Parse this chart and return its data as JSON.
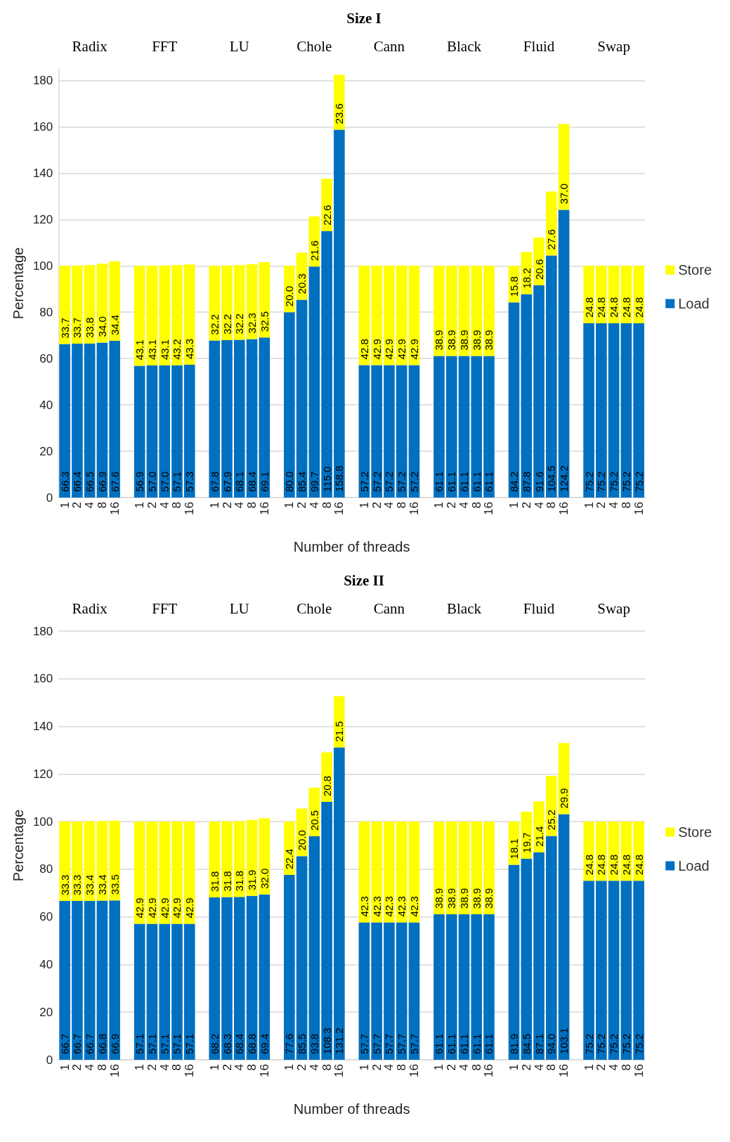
{
  "chart_data": [
    {
      "type": "bar",
      "title": "Size I",
      "xlabel": "Number of threads",
      "ylabel": "Percentage",
      "stacked": true,
      "grid": "y",
      "legend": "right",
      "ylim": [
        0,
        185
      ],
      "yticks": [
        0,
        20,
        40,
        60,
        80,
        100,
        120,
        140,
        160,
        180
      ],
      "annotations": [
        "Radix",
        "FFT",
        "LU",
        "Chole",
        "Cann",
        "Black",
        "Fluid",
        "Swap"
      ],
      "categories": [
        "1",
        "2",
        "4",
        "8",
        "16",
        null,
        "1",
        "2",
        "4",
        "8",
        "16",
        null,
        "1",
        "2",
        "4",
        "8",
        "16",
        null,
        "1",
        "2",
        "4",
        "8",
        "16",
        null,
        "1",
        "2",
        "4",
        "8",
        "16",
        null,
        "1",
        "2",
        "4",
        "8",
        "16",
        null,
        "1",
        "2",
        "4",
        "8",
        "16",
        null,
        "1",
        "2",
        "4",
        "8",
        "16"
      ],
      "series": [
        {
          "name": "Load",
          "color": "#0070c0",
          "values": [
            66.3,
            66.4,
            66.5,
            66.9,
            67.6,
            null,
            56.9,
            57.0,
            57.0,
            57.1,
            57.3,
            null,
            67.8,
            67.9,
            68.1,
            68.4,
            69.1,
            null,
            80.0,
            85.4,
            99.7,
            115.0,
            158.8,
            null,
            57.2,
            57.2,
            57.2,
            57.2,
            57.2,
            null,
            61.1,
            61.1,
            61.1,
            61.1,
            61.1,
            null,
            84.2,
            87.8,
            91.6,
            104.5,
            124.2,
            null,
            75.2,
            75.2,
            75.2,
            75.2,
            75.2
          ],
          "value_labels": [
            "66.3",
            "66.4",
            "66.5",
            "66.9",
            "67.6",
            null,
            "56.9",
            "57.0",
            "57.0",
            "57.1",
            "57.3",
            null,
            "67.8",
            "67.9",
            "68.1",
            "68.4",
            "69.1",
            null,
            "80.0",
            "85.4",
            "99.7",
            "115.0",
            "158.8",
            null,
            "57.2",
            "57.2",
            "57.2",
            "57.2",
            "57.2",
            null,
            "61.1",
            "61.1",
            "61.1",
            "61.1",
            "61.1",
            null,
            "84.2",
            "87.8",
            "91.6",
            "104.5",
            "124.2",
            null,
            "75.2",
            "75.2",
            "75.2",
            "75.2",
            "75.2"
          ]
        },
        {
          "name": "Store",
          "color": "#ffff00",
          "values": [
            33.7,
            33.7,
            33.8,
            34.0,
            34.4,
            null,
            43.1,
            43.1,
            43.1,
            43.2,
            43.3,
            null,
            32.2,
            32.2,
            32.2,
            32.3,
            32.5,
            null,
            20.0,
            20.3,
            21.6,
            22.6,
            23.6,
            null,
            42.8,
            42.9,
            42.9,
            42.9,
            42.9,
            null,
            38.9,
            38.9,
            38.9,
            38.9,
            38.9,
            null,
            15.8,
            18.2,
            20.6,
            27.6,
            37.0,
            null,
            24.8,
            24.8,
            24.8,
            24.8,
            24.8
          ],
          "value_labels": [
            "33.7",
            "33.7",
            "33.8",
            "34.0",
            "34.4",
            null,
            "43.1",
            "43.1",
            "43.1",
            "43.2",
            "43.3",
            null,
            "32.2",
            "32.2",
            "32.2",
            "32.3",
            "32.5",
            null,
            "20.0",
            "20.3",
            "21.6",
            "22.6",
            "23.6",
            null,
            "42.8",
            "42.9",
            "42.9",
            "42.9",
            "42.9",
            null,
            "38.9",
            "38.9",
            "38.9",
            "38.9",
            "38.9",
            null,
            "15.8",
            "18.2",
            "20.6",
            "27.6",
            "37.0",
            null,
            "24.8",
            "24.8",
            "24.8",
            "24.8",
            "24.8"
          ]
        }
      ]
    },
    {
      "type": "bar",
      "title": "Size II",
      "xlabel": "Number of threads",
      "ylabel": "Percentage",
      "stacked": true,
      "grid": "y",
      "legend": "right",
      "ylim": [
        0,
        180
      ],
      "yticks": [
        0,
        20,
        40,
        60,
        80,
        100,
        120,
        140,
        160,
        180
      ],
      "annotations": [
        "Radix",
        "FFT",
        "LU",
        "Chole",
        "Cann",
        "Black",
        "Fluid",
        "Swap"
      ],
      "categories": [
        "1",
        "2",
        "4",
        "8",
        "16",
        null,
        "1",
        "2",
        "4",
        "8",
        "16",
        null,
        "1",
        "2",
        "4",
        "8",
        "16",
        null,
        "1",
        "2",
        "4",
        "8",
        "16",
        null,
        "1",
        "2",
        "4",
        "8",
        "16",
        null,
        "1",
        "2",
        "4",
        "8",
        "16",
        null,
        "1",
        "2",
        "4",
        "8",
        "16",
        null,
        "1",
        "2",
        "4",
        "8",
        "16"
      ],
      "series": [
        {
          "name": "Load",
          "color": "#0070c0",
          "values": [
            66.7,
            66.7,
            66.7,
            66.8,
            66.9,
            null,
            57.1,
            57.1,
            57.1,
            57.1,
            57.1,
            null,
            68.2,
            68.3,
            68.4,
            68.8,
            69.4,
            null,
            77.6,
            85.5,
            93.8,
            108.3,
            131.2,
            null,
            57.7,
            57.7,
            57.7,
            57.7,
            57.7,
            null,
            61.1,
            61.1,
            61.1,
            61.1,
            61.1,
            null,
            81.9,
            84.5,
            87.1,
            94.0,
            103.1,
            null,
            75.2,
            75.2,
            75.2,
            75.2,
            75.2
          ],
          "value_labels": [
            "66.7",
            "66.7",
            "66.7",
            "66.8",
            "66.9",
            null,
            "57.1",
            "57.1",
            "57.1",
            "57.1",
            "57.1",
            null,
            "68.2",
            "68.3",
            "68.4",
            "68.8",
            "69.4",
            null,
            "77.6",
            "85.5",
            "93.8",
            "108.3",
            "131.2",
            null,
            "57.7",
            "57.7",
            "57.7",
            "57.7",
            "57.7",
            null,
            "61.1",
            "61.1",
            "61.1",
            "61.1",
            "61.1",
            null,
            "81.9",
            "84.5",
            "87.1",
            "94.0",
            "103.1",
            null,
            "75.2",
            "75.2",
            "75.2",
            "75.2",
            "75.2"
          ]
        },
        {
          "name": "Store",
          "color": "#ffff00",
          "values": [
            33.3,
            33.3,
            33.4,
            33.4,
            33.5,
            null,
            42.9,
            42.9,
            42.9,
            42.9,
            42.9,
            null,
            31.8,
            31.8,
            31.8,
            31.9,
            32.0,
            null,
            22.4,
            20.0,
            20.5,
            20.8,
            21.5,
            null,
            42.3,
            42.3,
            42.3,
            42.3,
            42.3,
            null,
            38.9,
            38.9,
            38.9,
            38.9,
            38.9,
            null,
            18.1,
            19.7,
            21.4,
            25.2,
            29.9,
            null,
            24.8,
            24.8,
            24.8,
            24.8,
            24.8
          ],
          "value_labels": [
            "33.3",
            "33.3",
            "33.4",
            "33.4",
            "33.5",
            null,
            "42.9",
            "42.9",
            "42.9",
            "42.9",
            "42.9",
            null,
            "31.8",
            "31.8",
            "31.8",
            "31.9",
            "32.0",
            null,
            "22.4",
            "20.0",
            "20.5",
            "20.8",
            "21.5",
            null,
            "42.3",
            "42.3",
            "42.3",
            "42.3",
            "42.3",
            null,
            "38.9",
            "38.9",
            "38.9",
            "38.9",
            "38.9",
            null,
            "18.1",
            "19.7",
            "21.4",
            "25.2",
            "29.9",
            null,
            "24.8",
            "24.8",
            "24.8",
            "24.8",
            "24.8"
          ]
        }
      ]
    }
  ]
}
